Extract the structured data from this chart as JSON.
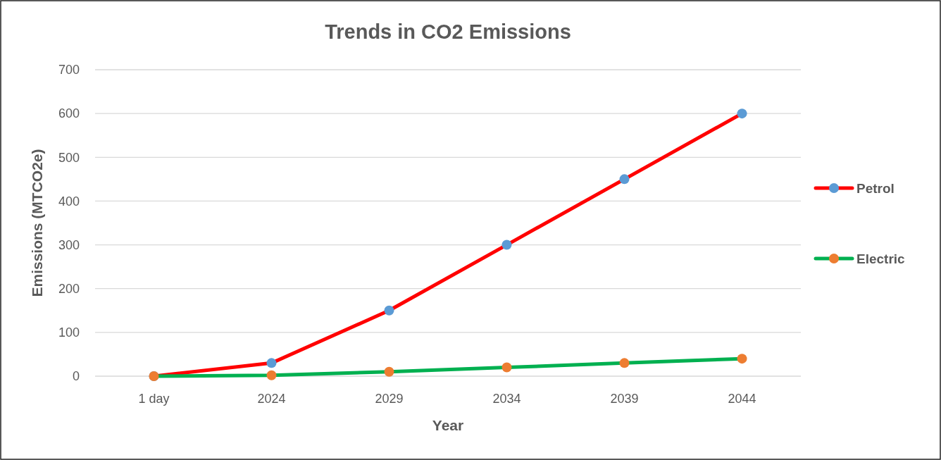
{
  "chart_data": {
    "type": "line",
    "title": "Trends in CO2 Emissions",
    "xlabel": "Year",
    "ylabel": "Emissions (MTCO2e)",
    "categories": [
      "1 day",
      "2024",
      "2029",
      "2034",
      "2039",
      "2044"
    ],
    "series": [
      {
        "name": "Petrol",
        "color": "#ff0000",
        "colors": [
          "#5b9bd5",
          "#5b9bd5",
          "#5b9bd5",
          "#5b9bd5",
          "#5b9bd5",
          "#5b9bd5"
        ],
        "values": [
          0,
          30,
          150,
          300,
          450,
          600
        ]
      },
      {
        "name": "Electric",
        "color": "#00b050",
        "colors": [
          "#ed7d31",
          "#ed7d31",
          "#ed7d31",
          "#ed7d31",
          "#ed7d31",
          "#ed7d31"
        ],
        "values": [
          0,
          2,
          10,
          20,
          30,
          40
        ]
      }
    ],
    "ylim": [
      0,
      700
    ],
    "yticks": [
      0,
      100,
      200,
      300,
      400,
      500,
      600,
      700
    ],
    "grid": "y",
    "legend": "right",
    "marker": "circle",
    "line_style": "solid"
  }
}
